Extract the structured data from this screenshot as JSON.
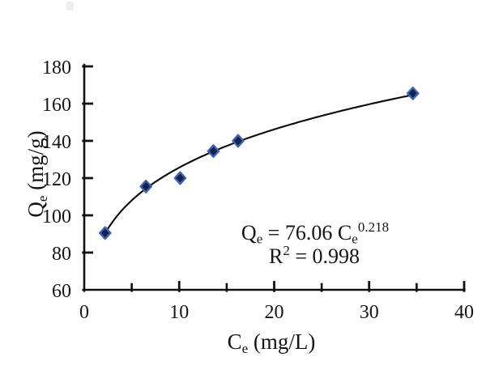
{
  "chart_data": {
    "type": "scatter",
    "title": "",
    "xlabel": "Ce (mg/L)",
    "ylabel": "Qe (mg/g)",
    "xlabel_parts": [
      {
        "t": "C"
      },
      {
        "t": "e",
        "sub": true
      },
      {
        "t": " (mg/L)"
      }
    ],
    "ylabel_parts": [
      {
        "t": "Q"
      },
      {
        "t": "e",
        "sub": true
      },
      {
        "t": " (mg/g)"
      }
    ],
    "xlim": [
      0,
      40
    ],
    "ylim": [
      60,
      180
    ],
    "x_major_ticks": [
      0,
      10,
      20,
      30,
      40
    ],
    "x_minor_ticks": [
      5,
      15,
      25,
      35
    ],
    "y_ticks": [
      60,
      80,
      100,
      120,
      140,
      160,
      180
    ],
    "grid": false,
    "legend": "none",
    "points": [
      {
        "x": 2.2,
        "y": 90.5
      },
      {
        "x": 6.5,
        "y": 115.5
      },
      {
        "x": 10.1,
        "y": 120
      },
      {
        "x": 13.6,
        "y": 134.5
      },
      {
        "x": 16.2,
        "y": 140
      },
      {
        "x": 34.6,
        "y": 165.5
      }
    ],
    "fit": {
      "type": "power",
      "a": 76.06,
      "b": 0.218,
      "x_start": 2.2,
      "x_end": 34.6
    },
    "annotation": {
      "line1_text": "Qe = 76.06 Ce^0.218",
      "line2_text": "R² = 0.998",
      "line1_parts": [
        {
          "t": "Q"
        },
        {
          "t": "e",
          "sub": true
        },
        {
          "t": " = 76.06 C"
        },
        {
          "t": "e",
          "sub": true
        },
        {
          "t": "0.218",
          "sup": true
        }
      ],
      "line2_parts": [
        {
          "t": "R"
        },
        {
          "t": "2",
          "sup": true
        },
        {
          "t": " = 0.998"
        }
      ]
    },
    "colors": {
      "marker_fill": "#13224F",
      "marker_stroke": "#3E63AE",
      "curve": "#0a0a0a",
      "axis": "#111111",
      "text": "#151515"
    },
    "marker_shape": "diamond"
  }
}
